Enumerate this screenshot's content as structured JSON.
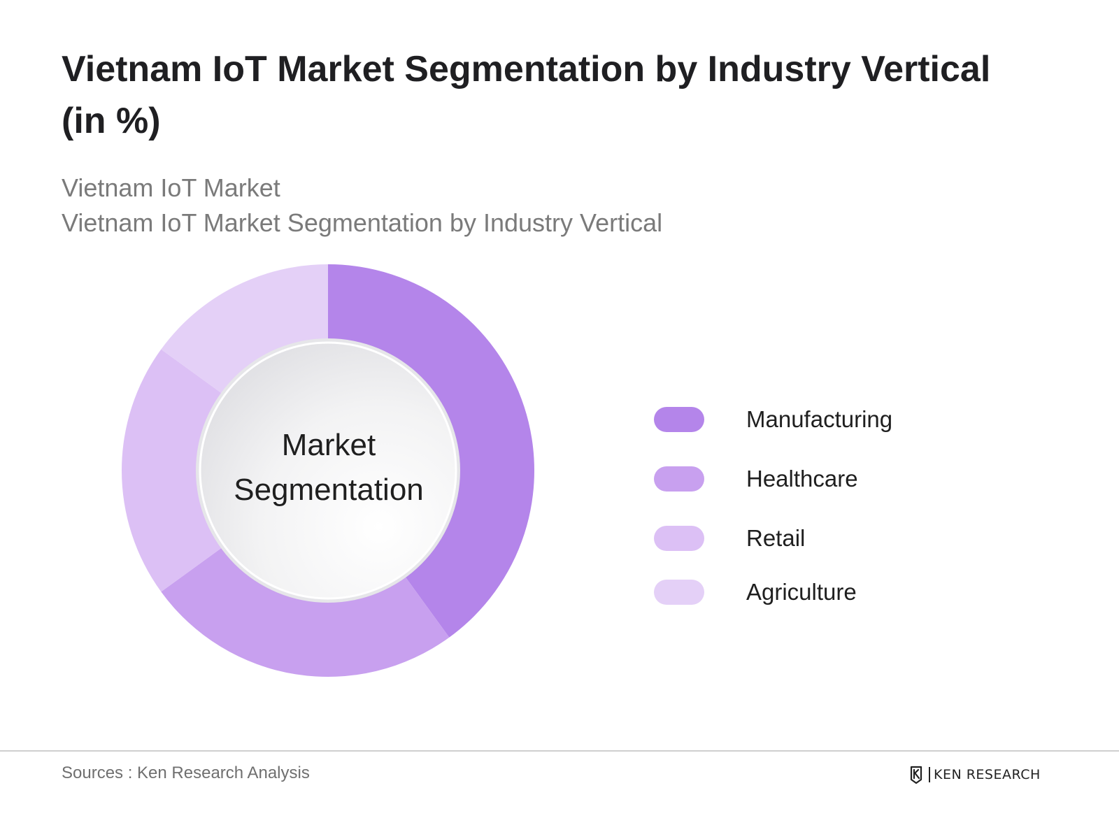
{
  "header": {
    "title_line1": "Vietnam IoT Market Segmentation by Industry Vertical",
    "title_line2": "(in %)",
    "subtitle_line1": "Vietnam IoT Market",
    "subtitle_line2": "Vietnam IoT Market Segmentation by Industry Vertical"
  },
  "chart_data": {
    "type": "pie",
    "variant": "donut",
    "center_label": [
      "Market",
      "Segmentation"
    ],
    "categories": [
      "Manufacturing",
      "Healthcare",
      "Retail",
      "Agriculture"
    ],
    "values": [
      40,
      25,
      20,
      15
    ],
    "colors": [
      "#b485ea",
      "#c8a0ef",
      "#dcc0f5",
      "#e4d0f7"
    ],
    "legend_position": "right",
    "start_angle_deg": 0,
    "direction": "clockwise"
  },
  "footer": {
    "source": "Sources : Ken Research Analysis",
    "brand": "KEN RESEARCH",
    "brand_mark": "K"
  }
}
